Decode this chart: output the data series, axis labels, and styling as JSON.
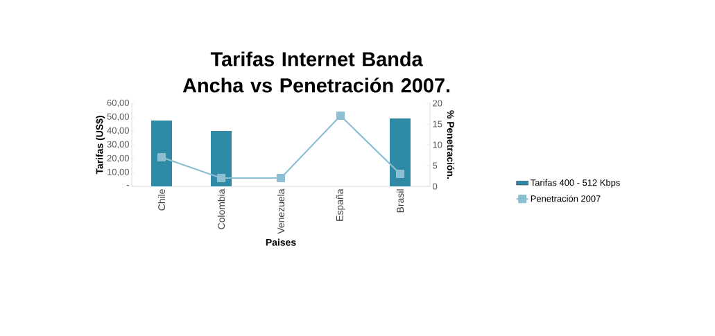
{
  "chart_data": {
    "type": "bar",
    "title": "Tarifas Internet Banda Ancha vs Penetración 2007.",
    "xlabel": "Paises",
    "ylabel": "Tarifas (US$)",
    "y2label": "% Penetración.",
    "categories": [
      "Chile",
      "Colombia",
      "Venezuela",
      "España",
      "Brasil"
    ],
    "series": [
      {
        "name": "Tarifas 400 - 512 Kbps",
        "color": "#2f8aa6",
        "values": [
          47.5,
          40,
          null,
          null,
          49
        ]
      },
      {
        "name": "Penetración 2007",
        "type": "line",
        "axis": "y2",
        "color": "#8dbfd2",
        "marker": "square",
        "values": [
          7,
          2,
          2,
          17,
          3
        ]
      }
    ],
    "ylim": [
      0,
      60
    ],
    "yticks": [
      {
        "value": 0,
        "label": "-"
      },
      {
        "value": 10,
        "label": "10,00"
      },
      {
        "value": 20,
        "label": "20,00"
      },
      {
        "value": 30,
        "label": "30,00"
      },
      {
        "value": 40,
        "label": "40,00"
      },
      {
        "value": 50,
        "label": "50,00"
      },
      {
        "value": 60,
        "label": "60,00"
      }
    ],
    "y2lim": [
      0,
      20
    ],
    "y2ticks": [
      0,
      5,
      10,
      15,
      20
    ],
    "legend": "right"
  }
}
